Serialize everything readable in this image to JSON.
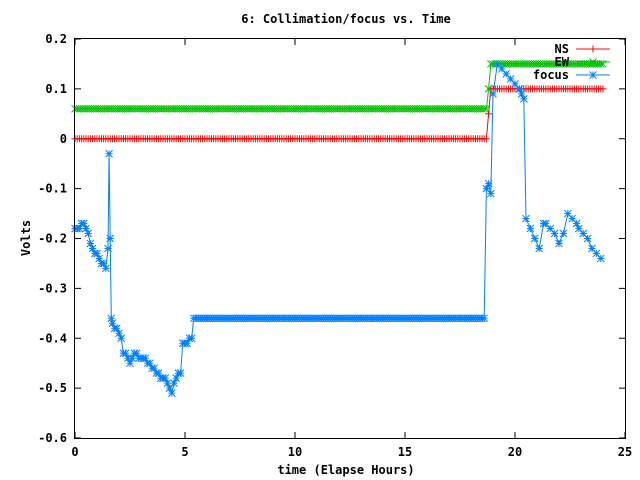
{
  "chart_data": {
    "type": "line",
    "title": "6: Collimation/focus vs. Time",
    "xlabel": "time (Elapse Hours)",
    "ylabel": "Volts",
    "xlim": [
      0,
      25
    ],
    "ylim": [
      -0.6,
      0.2
    ],
    "x_ticks": [
      "0",
      "5",
      "10",
      "15",
      "20",
      "25"
    ],
    "y_ticks": [
      "0.2",
      "0.1",
      "0",
      "-0.1",
      "-0.2",
      "-0.3",
      "-0.4",
      "-0.5",
      "-0.6"
    ],
    "legend_position": "top-right",
    "series": [
      {
        "name": "NS",
        "color": "#ff0000",
        "marker": "plus",
        "x": [
          0,
          18.6,
          18.7,
          18.8,
          18.9,
          24.0
        ],
        "y": [
          0.0,
          0.0,
          0.0,
          0.05,
          0.1,
          0.1
        ]
      },
      {
        "name": "EW",
        "color": "#00c000",
        "marker": "x",
        "x": [
          0,
          18.6,
          18.7,
          18.8,
          18.9,
          24.0
        ],
        "y": [
          0.06,
          0.06,
          0.06,
          0.1,
          0.15,
          0.15
        ]
      },
      {
        "name": "focus",
        "color": "#0080ff",
        "marker": "star",
        "x": [
          0.0,
          0.1,
          0.2,
          0.3,
          0.4,
          0.5,
          0.6,
          0.7,
          0.8,
          0.9,
          1.0,
          1.1,
          1.2,
          1.3,
          1.4,
          1.5,
          1.55,
          1.6,
          1.65,
          1.7,
          1.8,
          1.9,
          2.0,
          2.1,
          2.2,
          2.3,
          2.4,
          2.5,
          2.6,
          2.7,
          2.8,
          2.9,
          3.0,
          3.1,
          3.2,
          3.3,
          3.4,
          3.5,
          3.6,
          3.7,
          3.8,
          3.9,
          4.0,
          4.1,
          4.2,
          4.3,
          4.4,
          4.5,
          4.6,
          4.7,
          4.8,
          4.9,
          5.0,
          5.1,
          5.2,
          5.3,
          5.4,
          5.5,
          5.6,
          5.7,
          5.8,
          6.0,
          8.0,
          10.0,
          12.0,
          14.0,
          16.0,
          18.0,
          18.5,
          18.6,
          18.7,
          18.8,
          18.9,
          19.0,
          19.2,
          19.4,
          19.6,
          19.8,
          20.0,
          20.2,
          20.3,
          20.4,
          20.5,
          20.7,
          20.9,
          21.1,
          21.3,
          21.4,
          21.6,
          21.8,
          22.0,
          22.2,
          22.4,
          22.6,
          22.8,
          22.9,
          23.1,
          23.3,
          23.5,
          23.7,
          23.9
        ],
        "y": [
          -0.18,
          -0.18,
          -0.18,
          -0.17,
          -0.17,
          -0.18,
          -0.19,
          -0.21,
          -0.22,
          -0.23,
          -0.23,
          -0.24,
          -0.25,
          -0.25,
          -0.26,
          -0.22,
          -0.03,
          -0.2,
          -0.36,
          -0.37,
          -0.38,
          -0.38,
          -0.39,
          -0.4,
          -0.43,
          -0.43,
          -0.44,
          -0.45,
          -0.44,
          -0.43,
          -0.43,
          -0.44,
          -0.44,
          -0.44,
          -0.44,
          -0.45,
          -0.45,
          -0.46,
          -0.46,
          -0.47,
          -0.47,
          -0.48,
          -0.48,
          -0.48,
          -0.49,
          -0.5,
          -0.51,
          -0.49,
          -0.48,
          -0.47,
          -0.47,
          -0.41,
          -0.41,
          -0.41,
          -0.4,
          -0.4,
          -0.36,
          -0.36,
          -0.36,
          -0.36,
          -0.36,
          -0.36,
          -0.36,
          -0.36,
          -0.36,
          -0.36,
          -0.36,
          -0.36,
          -0.36,
          -0.36,
          -0.1,
          -0.09,
          -0.11,
          0.09,
          0.15,
          0.14,
          0.13,
          0.12,
          0.11,
          0.1,
          0.09,
          0.08,
          -0.16,
          -0.18,
          -0.2,
          -0.22,
          -0.17,
          -0.17,
          -0.18,
          -0.19,
          -0.21,
          -0.19,
          -0.15,
          -0.16,
          -0.17,
          -0.18,
          -0.19,
          -0.2,
          -0.22,
          -0.23,
          -0.24
        ]
      }
    ]
  }
}
